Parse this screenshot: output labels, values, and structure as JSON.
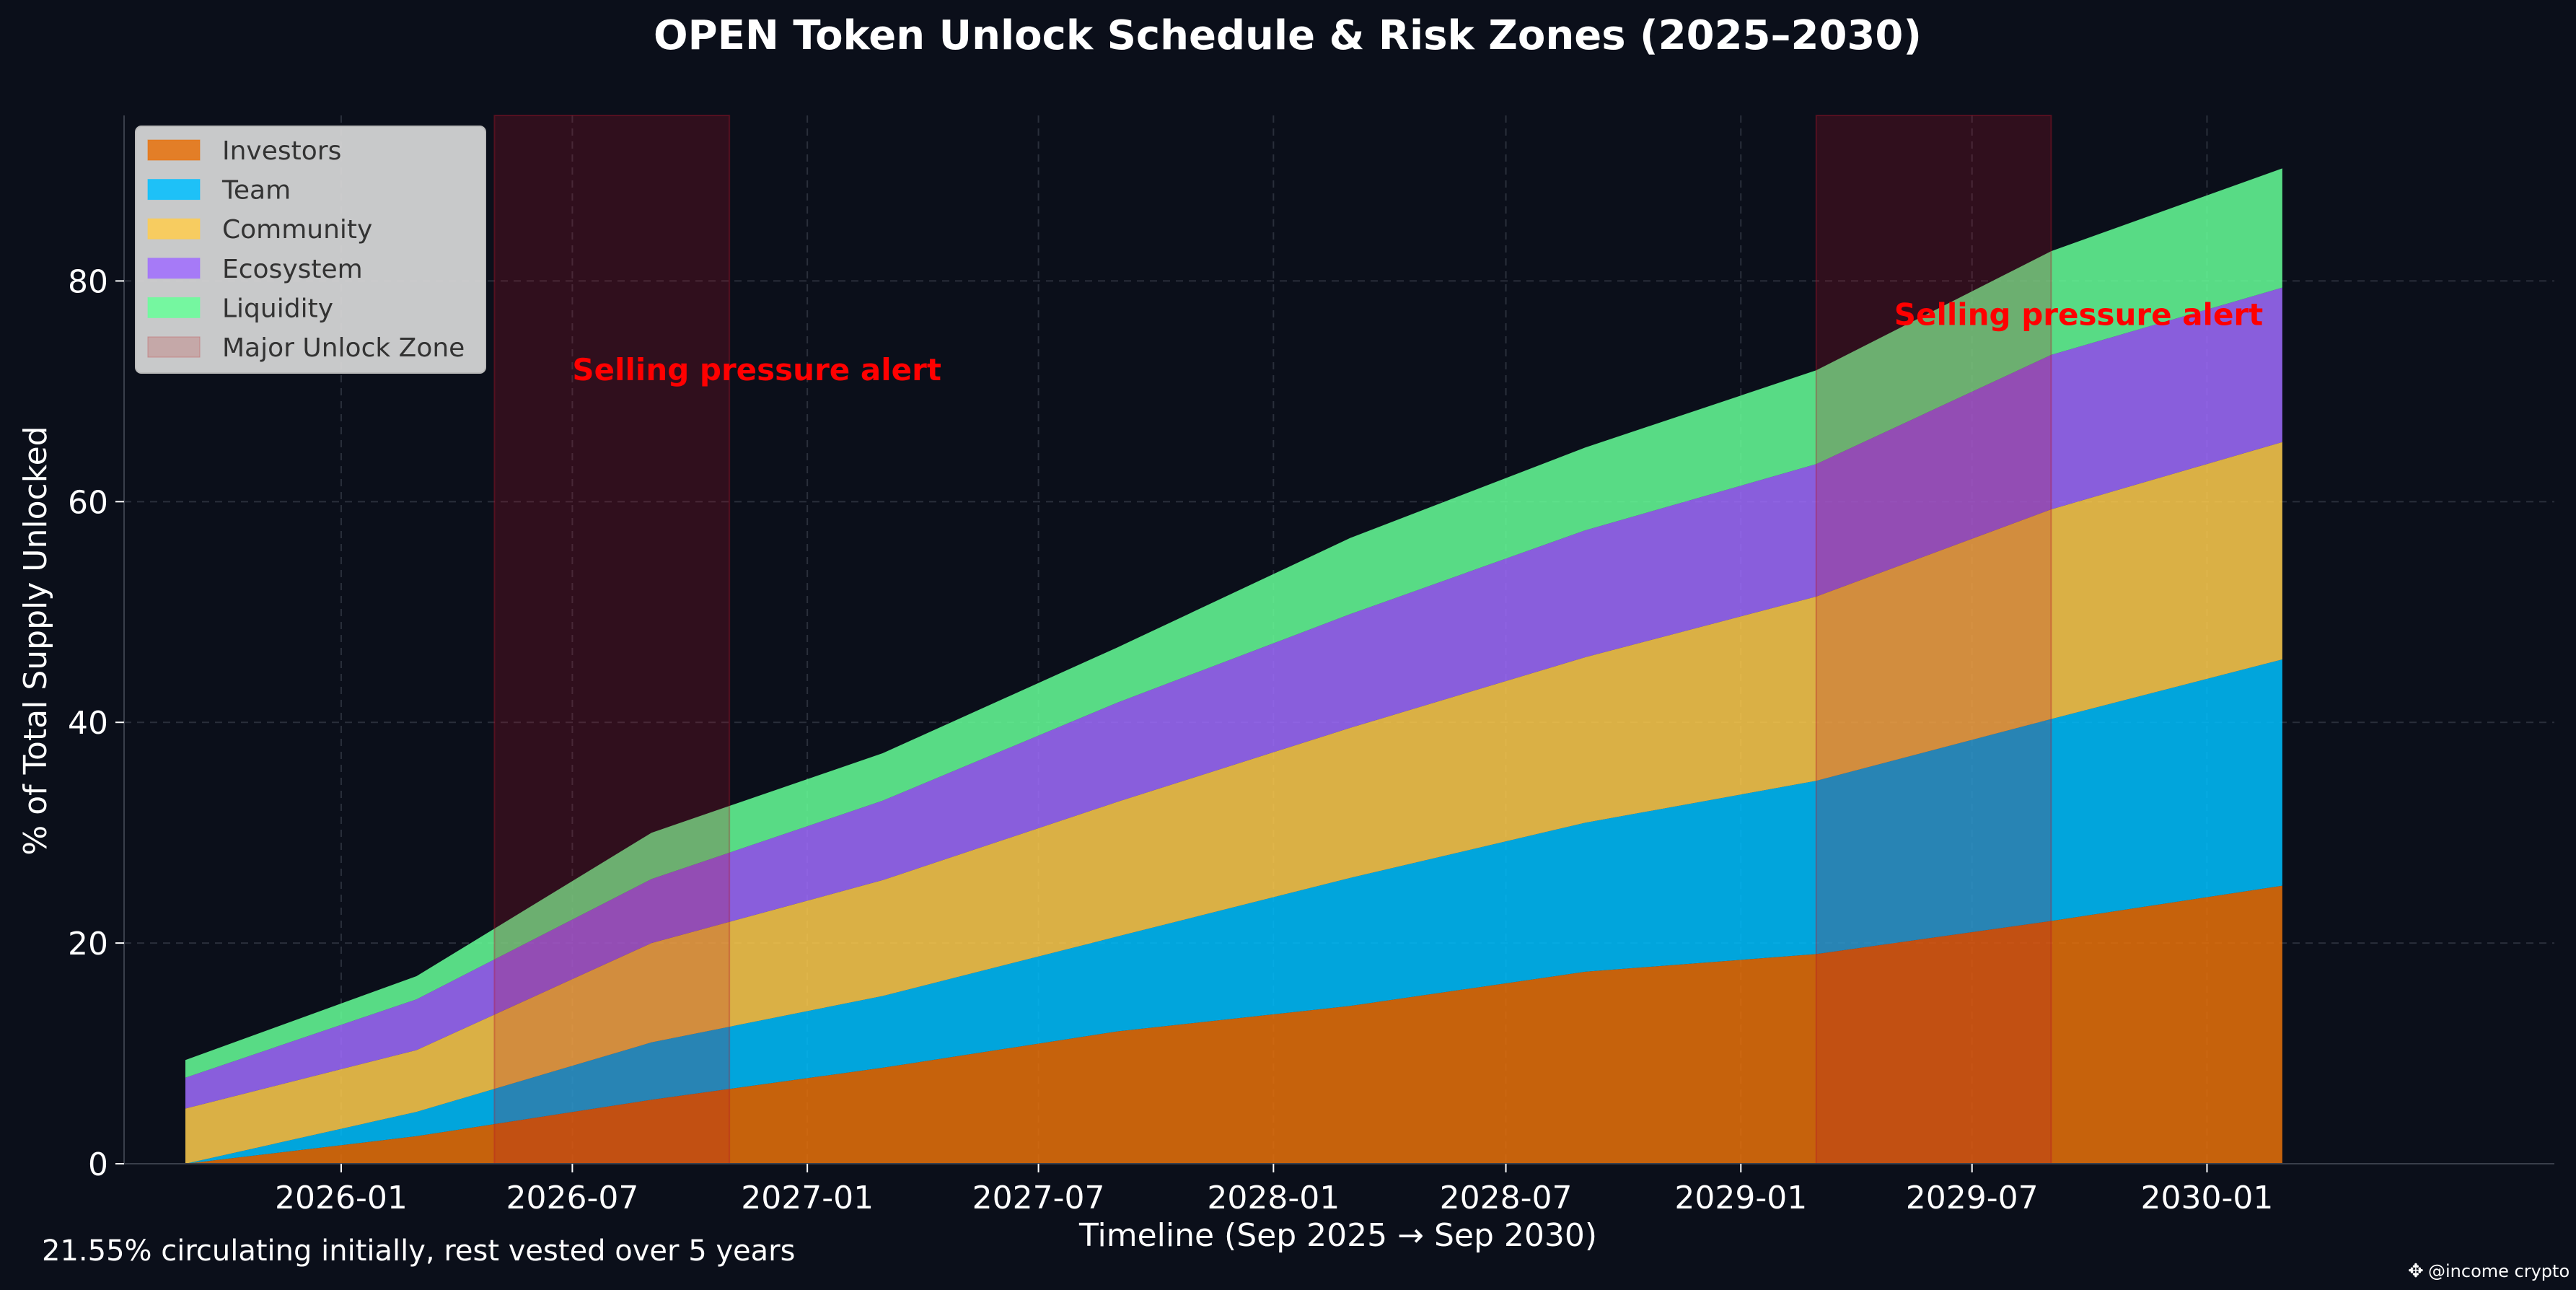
{
  "colors": {
    "background": "#0b0f1a",
    "grid": "#2a2f3b",
    "text": "#ffffff",
    "alert": "#ff0000",
    "legend_bg": "#d9d9d9",
    "legend_text": "#333333",
    "zone": "#5c101c"
  },
  "chart_data": {
    "type": "area",
    "stacked": true,
    "title": "OPEN Token Unlock Schedule & Risk Zones (2025–2030)",
    "xlabel": "Timeline (Sep 2025 → Sep 2030)",
    "ylabel": "% of Total Supply Unlocked",
    "footnote": "21.55% circulating initially, rest vested over 5 years",
    "watermark": "@income crypto",
    "x": [
      "2025-09",
      "2026-03",
      "2026-09",
      "2027-03",
      "2027-09",
      "2028-03",
      "2028-09",
      "2029-03",
      "2029-09",
      "2030-03"
    ],
    "xlim": [
      "2025-07-15",
      "2030-09-30"
    ],
    "x_ticks": [
      "2026-01",
      "2026-07",
      "2027-01",
      "2027-07",
      "2028-01",
      "2028-07",
      "2029-01",
      "2029-07",
      "2030-01"
    ],
    "ylim": [
      0,
      95
    ],
    "y_ticks": [
      0,
      20,
      40,
      60,
      80
    ],
    "grid": true,
    "legend_position": "top-left",
    "series": [
      {
        "name": "Investors",
        "color": "#e8710a",
        "values": [
          0,
          2.5,
          5.8,
          8.7,
          12.0,
          14.3,
          17.4,
          19.0,
          22.0,
          25.2
        ]
      },
      {
        "name": "Team",
        "color": "#00bfff",
        "values": [
          0,
          2.2,
          5.2,
          6.5,
          8.6,
          11.6,
          13.5,
          15.7,
          18.3,
          20.5
        ]
      },
      {
        "name": "Community",
        "color": "#ffcc4d",
        "values": [
          5.0,
          5.6,
          9.0,
          10.5,
          12.2,
          13.6,
          15.0,
          16.7,
          19.0,
          19.7
        ]
      },
      {
        "name": "Ecosystem",
        "color": "#a06cff",
        "values": [
          2.8,
          4.6,
          5.8,
          7.2,
          9.0,
          10.3,
          11.5,
          12.0,
          14.0,
          14.0
        ]
      },
      {
        "name": "Liquidity",
        "color": "#66ff99",
        "values": [
          1.6,
          2.1,
          4.2,
          4.3,
          5.0,
          6.9,
          7.5,
          8.5,
          9.4,
          10.8
        ]
      }
    ],
    "zones": [
      {
        "name": "Major Unlock Zone",
        "start": "2026-05-01",
        "end": "2026-11-01",
        "label": "Selling pressure alert",
        "label_x": "2026-07-01",
        "label_y": 71
      },
      {
        "name": "Major Unlock Zone",
        "start": "2029-03-01",
        "end": "2029-09-01",
        "label": "Selling pressure alert",
        "label_x": "2029-05-01",
        "label_y": 76
      }
    ]
  }
}
